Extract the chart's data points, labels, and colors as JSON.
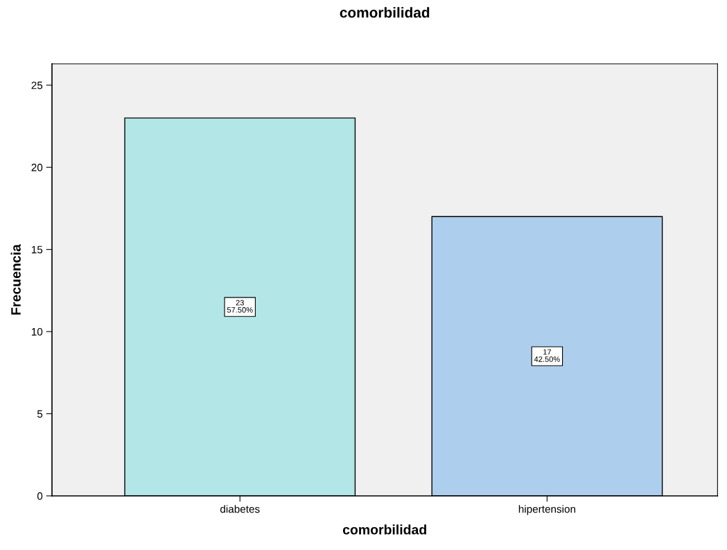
{
  "chart_data": {
    "type": "bar",
    "title": "comorbilidad",
    "xlabel": "comorbilidad",
    "ylabel": "Frecuencia",
    "categories": [
      "diabetes",
      "hipertension"
    ],
    "values": [
      23,
      17
    ],
    "colors": [
      "#b3e6e6",
      "#adcfed"
    ],
    "value_labels": [
      "23\n57.50%",
      "17\n42.50%"
    ],
    "ylim": [
      0,
      26.3
    ],
    "yticks": [
      0,
      5,
      10,
      15,
      20,
      25
    ],
    "grid": false,
    "legend": false
  }
}
